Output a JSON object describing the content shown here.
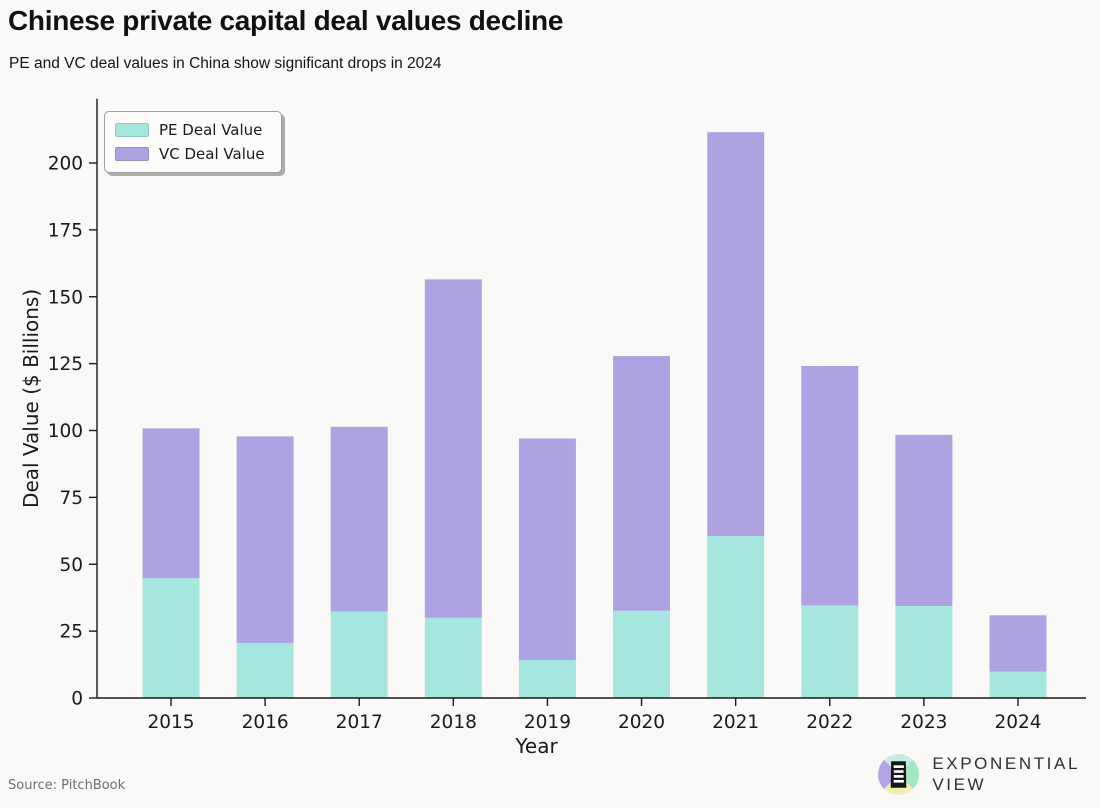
{
  "header": {
    "title": "Chinese private capital deal values decline",
    "subtitle": "PE and VC deal values in China show significant drops in 2024"
  },
  "chart_data": {
    "type": "bar",
    "stacked": true,
    "title": "Chinese private capital deal values decline",
    "subtitle": "PE and VC deal values in China show significant drops in 2024",
    "xlabel": "Year",
    "ylabel": "Deal Value ($ Billions)",
    "categories": [
      "2015",
      "2016",
      "2017",
      "2018",
      "2019",
      "2020",
      "2021",
      "2022",
      "2023",
      "2024"
    ],
    "series": [
      {
        "name": "PE Deal Value",
        "color": "#a5e6de",
        "values": [
          44.8,
          20.6,
          32.4,
          30.0,
          14.2,
          32.6,
          60.5,
          34.6,
          34.4,
          9.9
        ]
      },
      {
        "name": "VC Deal Value",
        "color": "#aea2e3",
        "values": [
          56.0,
          77.2,
          69.0,
          126.5,
          82.8,
          95.2,
          151.0,
          89.5,
          64.0,
          21.0
        ]
      }
    ],
    "totals": [
      100.8,
      97.8,
      101.4,
      156.5,
      97.0,
      127.8,
      211.5,
      124.1,
      98.4,
      30.9
    ],
    "ylim": [
      0,
      224
    ],
    "yticks": [
      0,
      25,
      50,
      75,
      100,
      125,
      150,
      175,
      200
    ],
    "grid": false,
    "legend_position": "upper left",
    "axis_color": "#1a1a1a",
    "background_color": "#faf9f7"
  },
  "footer": {
    "source": "Source: PitchBook",
    "logo": {
      "line1": "EXPONENTIAL",
      "line2": "VIEW"
    }
  }
}
